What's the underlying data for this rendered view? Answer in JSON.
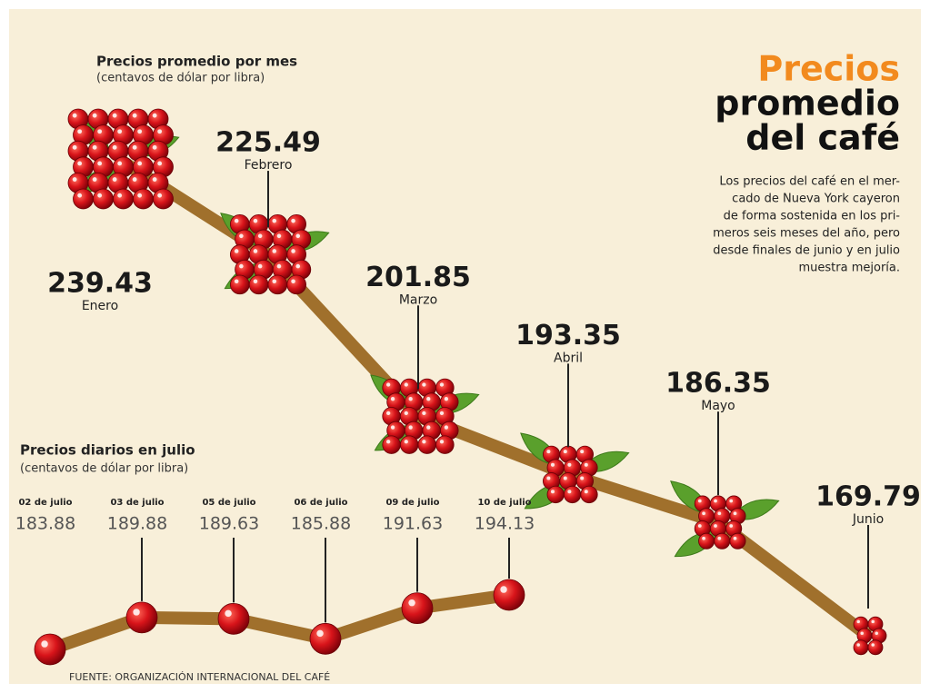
{
  "header": {
    "title_lines": [
      "Precios",
      "promedio",
      "del café"
    ],
    "description": [
      "Los precios del café en el mer-",
      "cado de Nueva York cayeron",
      "de forma sostenida en los pri-",
      "meros seis meses del año, pero",
      "desde finales de junio y en julio",
      "muestra mejoría."
    ]
  },
  "chart_data": [
    {
      "type": "line",
      "title": "Precios promedio por mes",
      "subtitle": "(centavos de dólar por libra)",
      "categories": [
        "Enero",
        "Febrero",
        "Marzo",
        "Abril",
        "Mayo",
        "Junio"
      ],
      "values": [
        239.43,
        225.49,
        201.85,
        193.35,
        186.35,
        169.79
      ],
      "color": "#a0702c"
    },
    {
      "type": "line",
      "title": "Precios diarios en julio",
      "subtitle": "(centavos de dólar por libra)",
      "categories": [
        "02 de julio",
        "03 de julio",
        "05 de julio",
        "06 de julio",
        "09 de julio",
        "10 de julio"
      ],
      "values": [
        183.88,
        189.88,
        189.63,
        185.88,
        191.63,
        194.13
      ],
      "color": "#a0702c"
    }
  ],
  "source": "FUENTE: ORGANIZACIÓN INTERNACIONAL DEL CAFÉ"
}
